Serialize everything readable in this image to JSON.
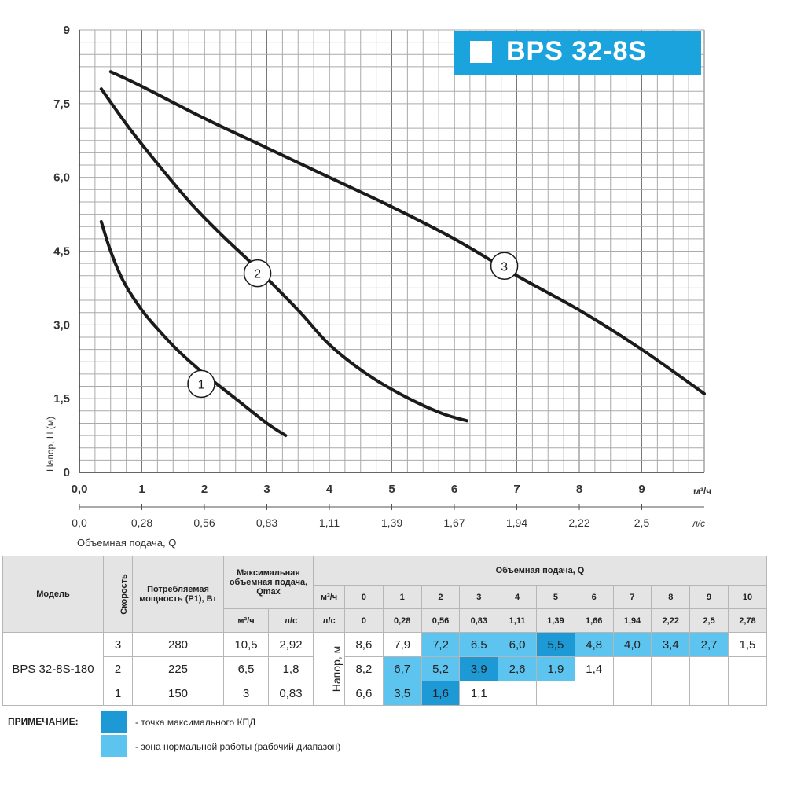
{
  "header": {
    "model_badge": "BPS 32-8S"
  },
  "chart_data": {
    "type": "line",
    "ylabel": "Напор, Н (м)",
    "xlabel": "Объемная подача, Q",
    "x_unit": "м³/ч",
    "x2_unit": "л/с",
    "xlim": [
      0,
      10
    ],
    "ylim": [
      0,
      9
    ],
    "grid": true,
    "y_ticks": [
      "0",
      "1,5",
      "3,0",
      "4,5",
      "6,0",
      "7,5",
      "9"
    ],
    "y_tick_values": [
      0,
      1.5,
      3,
      4.5,
      6,
      7.5,
      9
    ],
    "x_ticks": [
      "0,0",
      "1",
      "2",
      "3",
      "4",
      "5",
      "6",
      "7",
      "8",
      "9"
    ],
    "x_tick_values": [
      0,
      1,
      2,
      3,
      4,
      5,
      6,
      7,
      8,
      9
    ],
    "x2_ticks": [
      "0,0",
      "0,28",
      "0,56",
      "0,83",
      "1,11",
      "1,39",
      "1,67",
      "1,94",
      "2,22",
      "2,5"
    ],
    "x2_tick_values": [
      0,
      1,
      2,
      3,
      4,
      5,
      6,
      7,
      8,
      9
    ],
    "series": [
      {
        "name": "1",
        "label_at": [
          1.95,
          1.8
        ],
        "x": [
          0.35,
          0.5,
          0.7,
          1.0,
          1.3,
          1.6,
          2.0,
          2.5,
          3.0,
          3.3
        ],
        "y": [
          5.1,
          4.5,
          3.9,
          3.3,
          2.85,
          2.45,
          2.0,
          1.5,
          1.0,
          0.75
        ]
      },
      {
        "name": "2",
        "label_at": [
          2.85,
          4.05
        ],
        "x": [
          0.35,
          0.8,
          1.3,
          1.8,
          2.3,
          2.8,
          3.5,
          4.0,
          4.6,
          5.2,
          5.8,
          6.2
        ],
        "y": [
          7.8,
          7.0,
          6.2,
          5.45,
          4.8,
          4.2,
          3.3,
          2.6,
          2.0,
          1.55,
          1.2,
          1.05
        ]
      },
      {
        "name": "3",
        "label_at": [
          6.8,
          4.2
        ],
        "x": [
          0.5,
          1.0,
          2.0,
          3.0,
          4.0,
          5.0,
          6.0,
          7.0,
          8.0,
          9.0,
          10.0
        ],
        "y": [
          8.15,
          7.85,
          7.2,
          6.6,
          6.0,
          5.4,
          4.75,
          4.0,
          3.3,
          2.5,
          1.6
        ]
      }
    ]
  },
  "table": {
    "headers": {
      "model": "Модель",
      "speed": "Скорость",
      "power": "Потребляемая мощность (P1), Вт",
      "qmax": "Максимальная объемная подача, Qmax",
      "flow": "Объемная подача, Q",
      "unit_m3h": "м³/ч",
      "unit_ls": "л/с",
      "head": "Напор, м"
    },
    "flow_m3h": [
      "0",
      "1",
      "2",
      "3",
      "4",
      "5",
      "6",
      "7",
      "8",
      "9",
      "10"
    ],
    "flow_ls": [
      "0",
      "0,28",
      "0,56",
      "0,83",
      "1,11",
      "1,39",
      "1,66",
      "1,94",
      "2,22",
      "2,5",
      "2,78"
    ],
    "model_name": "BPS 32-8S-180",
    "rows": [
      {
        "speed": "3",
        "power": "280",
        "qmax_m3h": "10,5",
        "qmax_ls": "2,92",
        "heads": [
          "8,6",
          "7,9",
          "7,2",
          "6,5",
          "6,0",
          "5,5",
          "4,8",
          "4,0",
          "3,4",
          "2,7",
          "1,5"
        ],
        "zone": [
          2,
          3,
          4,
          6,
          7,
          8,
          9
        ],
        "max_eff": [
          5
        ]
      },
      {
        "speed": "2",
        "power": "225",
        "qmax_m3h": "6,5",
        "qmax_ls": "1,8",
        "heads": [
          "8,2",
          "6,7",
          "5,2",
          "3,9",
          "2,6",
          "1,9",
          "1,4",
          "",
          "",
          "",
          ""
        ],
        "zone": [
          1,
          2,
          4,
          5
        ],
        "max_eff": [
          3
        ]
      },
      {
        "speed": "1",
        "power": "150",
        "qmax_m3h": "3",
        "qmax_ls": "0,83",
        "heads": [
          "6,6",
          "3,5",
          "1,6",
          "1,1",
          "",
          "",
          "",
          "",
          "",
          "",
          ""
        ],
        "zone": [
          1
        ],
        "max_eff": [
          2
        ]
      }
    ]
  },
  "colors": {
    "max_eff": "#1d9ad6",
    "zone": "#5dc4ef",
    "accent": "#1aa3dd"
  },
  "note": {
    "label": "ПРИМЕЧАНИЕ:",
    "max_eff_text": "- точка максимального КПД",
    "zone_text": "- зона нормальной работы (рабочий диапазон)"
  }
}
